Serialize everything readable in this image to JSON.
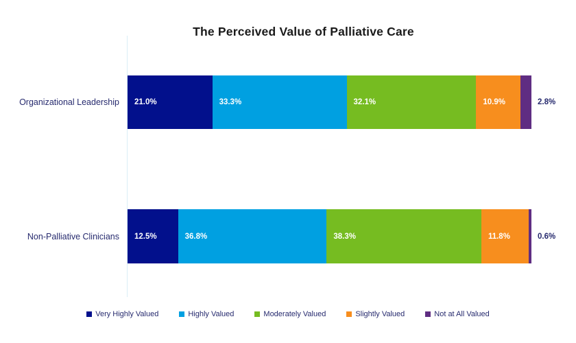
{
  "title": "The Perceived Value of Palliative Care",
  "chart_data": {
    "type": "bar",
    "orientation": "horizontal",
    "stacked": true,
    "title": "The Perceived Value of Palliative Care",
    "categories": [
      "Organizational Leadership",
      "Non-Palliative Clinicians"
    ],
    "series": [
      {
        "name": "Very Highly Valued",
        "color": "#02108c",
        "values": [
          21.0,
          12.5
        ]
      },
      {
        "name": "Highly Valued",
        "color": "#00a0e1",
        "values": [
          33.3,
          36.8
        ]
      },
      {
        "name": "Moderately Valued",
        "color": "#76bc21",
        "values": [
          32.1,
          38.3
        ]
      },
      {
        "name": "Slightly Valued",
        "color": "#f78e1e",
        "values": [
          10.9,
          11.8
        ]
      },
      {
        "name": "Not at All Valued",
        "color": "#5f2d82",
        "values": [
          2.8,
          0.6
        ]
      }
    ],
    "value_label_format": "percent_one_decimal",
    "xlim": [
      0,
      100
    ],
    "grid": false,
    "legend_position": "bottom",
    "colors": {
      "title_text": "#1a1a1a",
      "label_text": "#262a6e",
      "inside_value_text": "#ffffff",
      "axis_line": "#d9eef6",
      "background": "#ffffff"
    }
  }
}
